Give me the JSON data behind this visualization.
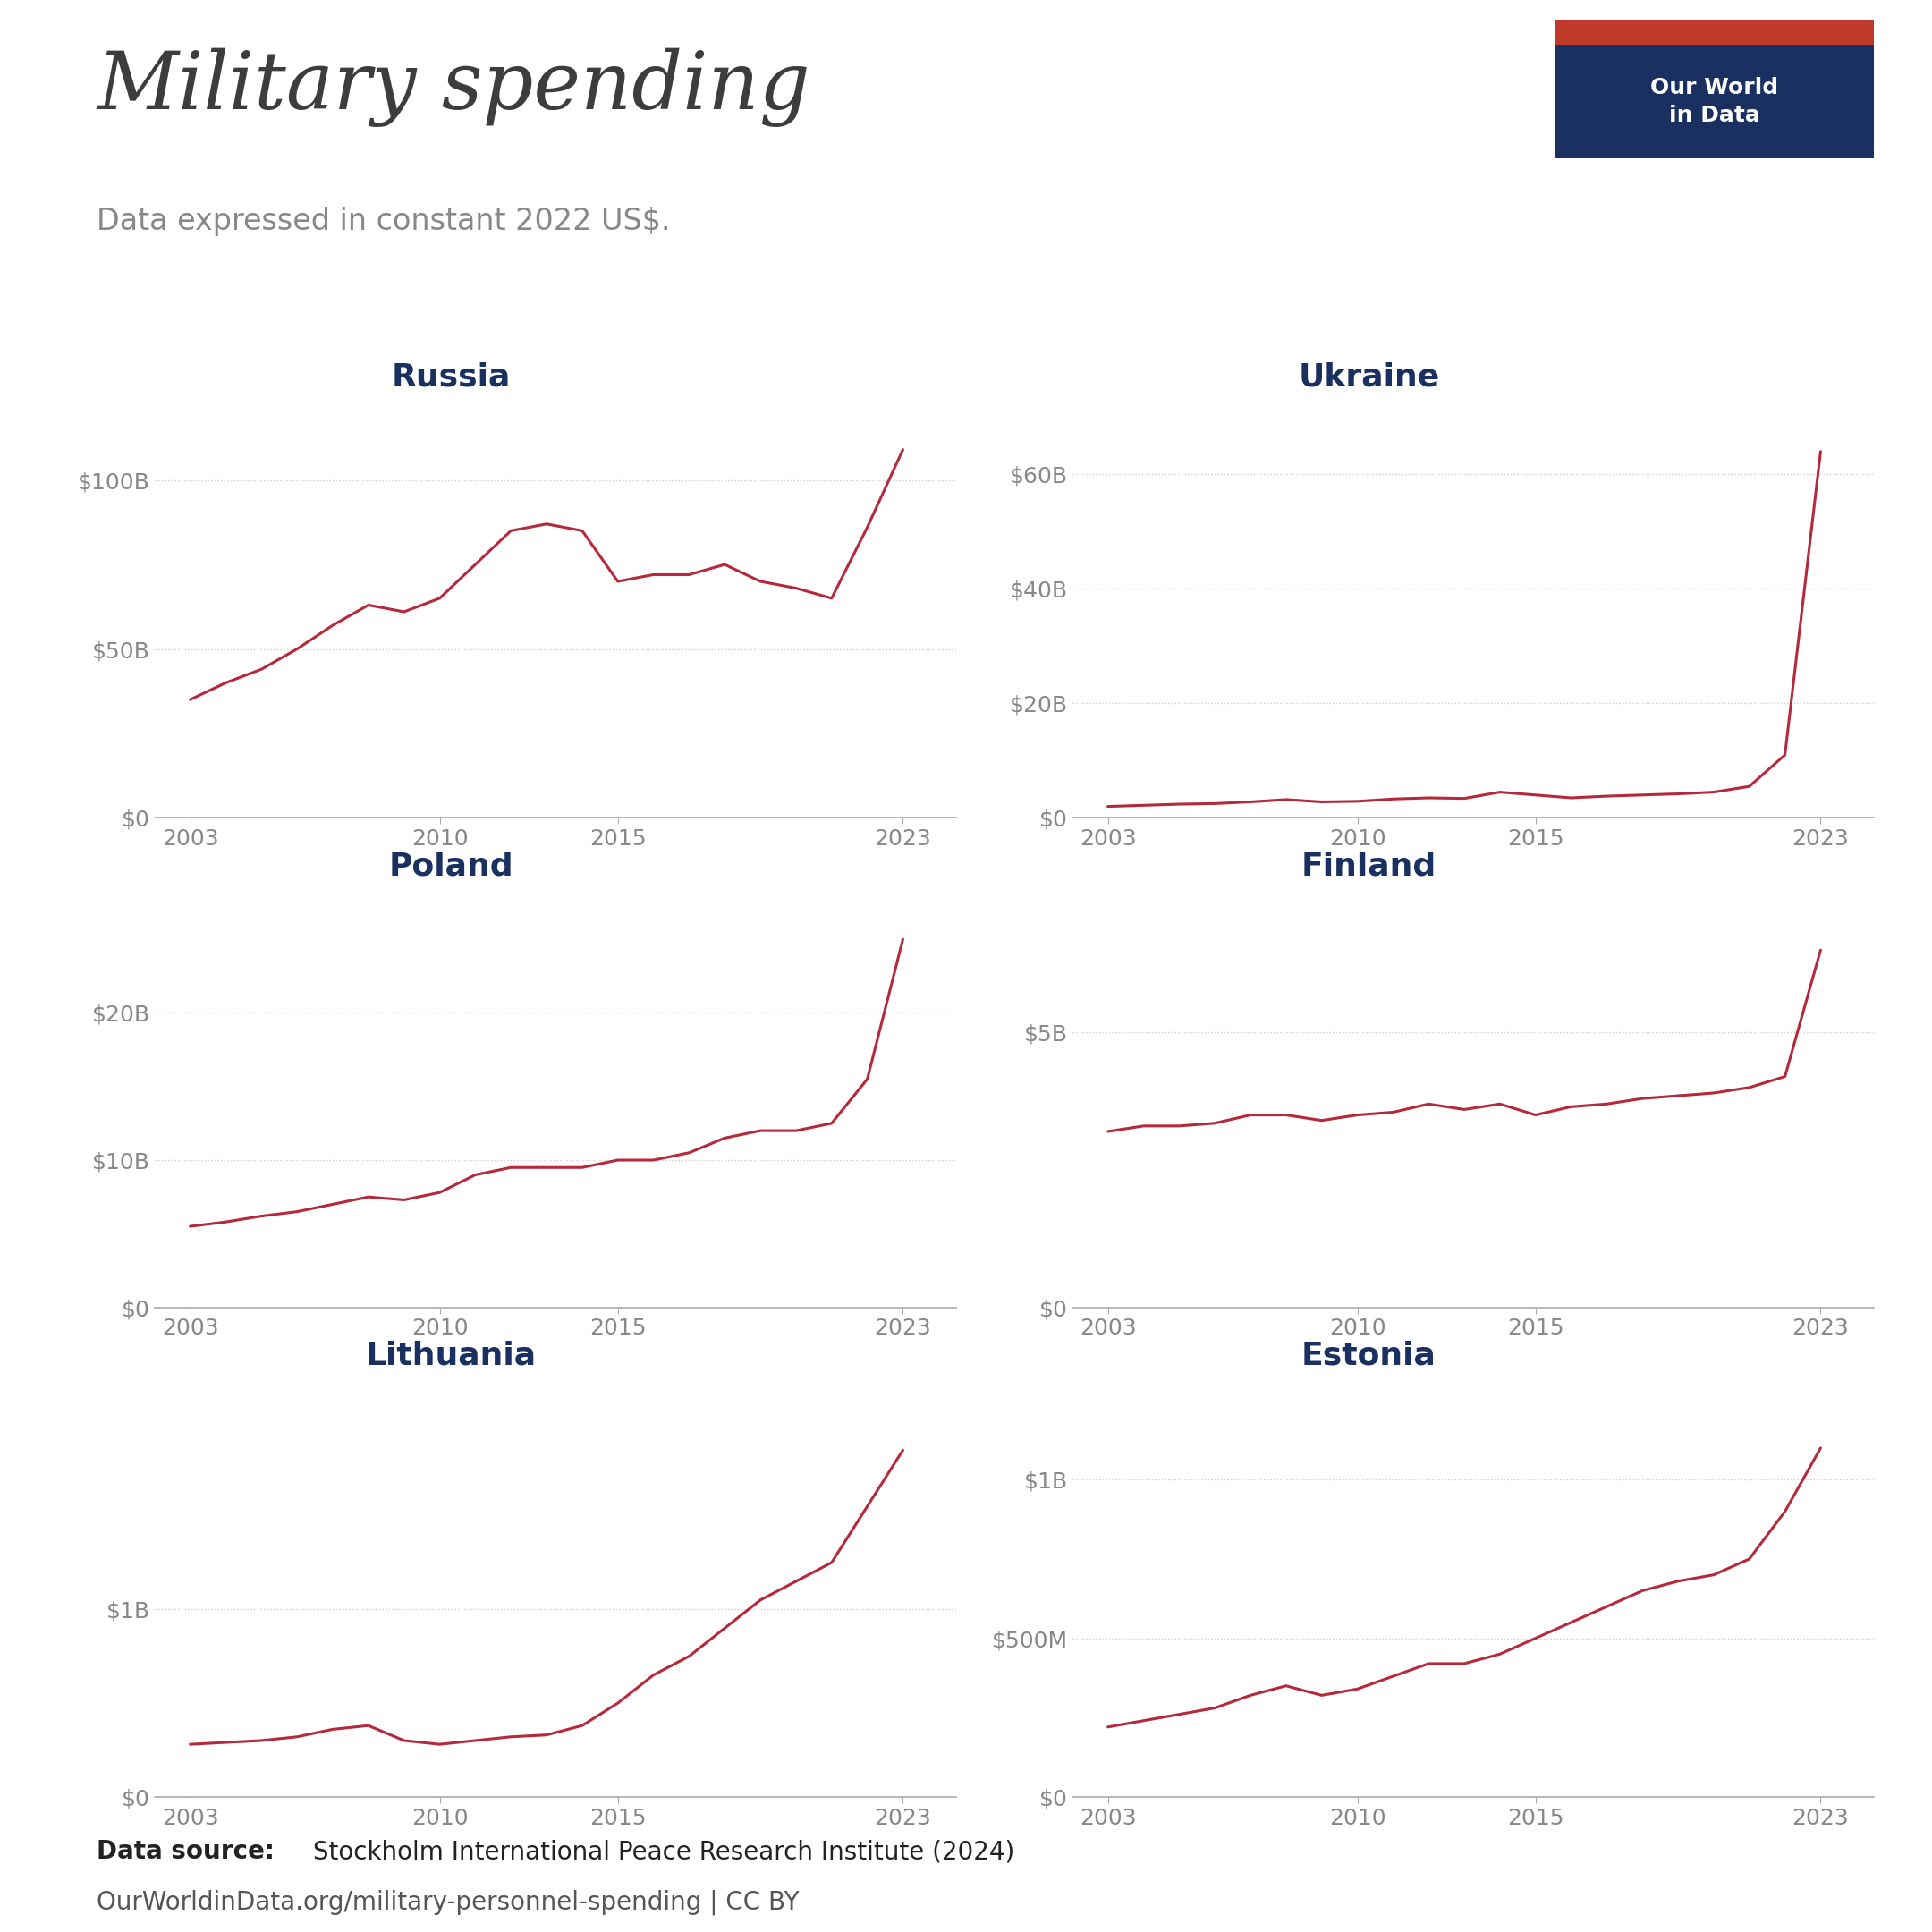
{
  "title": "Military spending",
  "subtitle": "Data expressed in constant 2022 US$.",
  "background_color": "#ffffff",
  "line_color": "#b5293a",
  "title_color": "#3d3d3d",
  "subtitle_color": "#888888",
  "country_title_color": "#1a3060",
  "tick_color": "#888888",
  "grid_color": "#cccccc",
  "years": [
    2003,
    2004,
    2005,
    2006,
    2007,
    2008,
    2009,
    2010,
    2011,
    2012,
    2013,
    2014,
    2015,
    2016,
    2017,
    2018,
    2019,
    2020,
    2021,
    2022,
    2023
  ],
  "countries": {
    "Russia": {
      "values": [
        35,
        40,
        44,
        50,
        57,
        63,
        61,
        65,
        75,
        85,
        87,
        85,
        70,
        72,
        72,
        75,
        70,
        68,
        65,
        86,
        109
      ],
      "yticks": [
        0,
        50,
        100
      ],
      "ytick_labels": [
        "$0",
        "$50B",
        "$100B"
      ],
      "ylim": [
        0,
        122
      ]
    },
    "Ukraine": {
      "values": [
        2.0,
        2.2,
        2.4,
        2.5,
        2.8,
        3.2,
        2.8,
        2.9,
        3.3,
        3.5,
        3.4,
        4.5,
        4.0,
        3.5,
        3.8,
        4.0,
        4.2,
        4.5,
        5.5,
        11.0,
        64.0
      ],
      "yticks": [
        0,
        20,
        40,
        60
      ],
      "ytick_labels": [
        "$0",
        "$20B",
        "$40B",
        "$60B"
      ],
      "ylim": [
        0,
        72
      ]
    },
    "Poland": {
      "values": [
        5.5,
        5.8,
        6.2,
        6.5,
        7.0,
        7.5,
        7.3,
        7.8,
        9.0,
        9.5,
        9.5,
        9.5,
        10.0,
        10.0,
        10.5,
        11.5,
        12.0,
        12.0,
        12.5,
        15.5,
        25.0
      ],
      "yticks": [
        0,
        10,
        20
      ],
      "ytick_labels": [
        "$0",
        "$10B",
        "$20B"
      ],
      "ylim": [
        0,
        28
      ]
    },
    "Finland": {
      "values": [
        3.2,
        3.3,
        3.3,
        3.35,
        3.5,
        3.5,
        3.4,
        3.5,
        3.55,
        3.7,
        3.6,
        3.7,
        3.5,
        3.65,
        3.7,
        3.8,
        3.85,
        3.9,
        4.0,
        4.2,
        6.5
      ],
      "yticks": [
        0,
        5
      ],
      "ytick_labels": [
        "$0",
        "$5B"
      ],
      "ylim": [
        0,
        7.5
      ]
    },
    "Lithuania": {
      "values": [
        0.28,
        0.29,
        0.3,
        0.32,
        0.36,
        0.38,
        0.3,
        0.28,
        0.3,
        0.32,
        0.33,
        0.38,
        0.5,
        0.65,
        0.75,
        0.9,
        1.05,
        1.15,
        1.25,
        1.55,
        1.85
      ],
      "yticks": [
        0,
        1
      ],
      "ytick_labels": [
        "$0",
        "$1B"
      ],
      "ylim": [
        0,
        2.2
      ]
    },
    "Estonia": {
      "values": [
        0.22,
        0.24,
        0.26,
        0.28,
        0.32,
        0.35,
        0.32,
        0.34,
        0.38,
        0.42,
        0.42,
        0.45,
        0.5,
        0.55,
        0.6,
        0.65,
        0.68,
        0.7,
        0.75,
        0.9,
        1.1
      ],
      "yticks": [
        0,
        0.5,
        1.0
      ],
      "ytick_labels": [
        "$0",
        "$500M",
        "$1B"
      ],
      "ylim": [
        0,
        1.3
      ]
    }
  },
  "logo_bg": "#1a3060",
  "logo_accent": "#c0392b",
  "source_bold": "Data source:",
  "source_normal": " Stockholm International Peace Research Institute (2024)",
  "source_url": "OurWorldinData.org/military-personnel-spending | CC BY"
}
